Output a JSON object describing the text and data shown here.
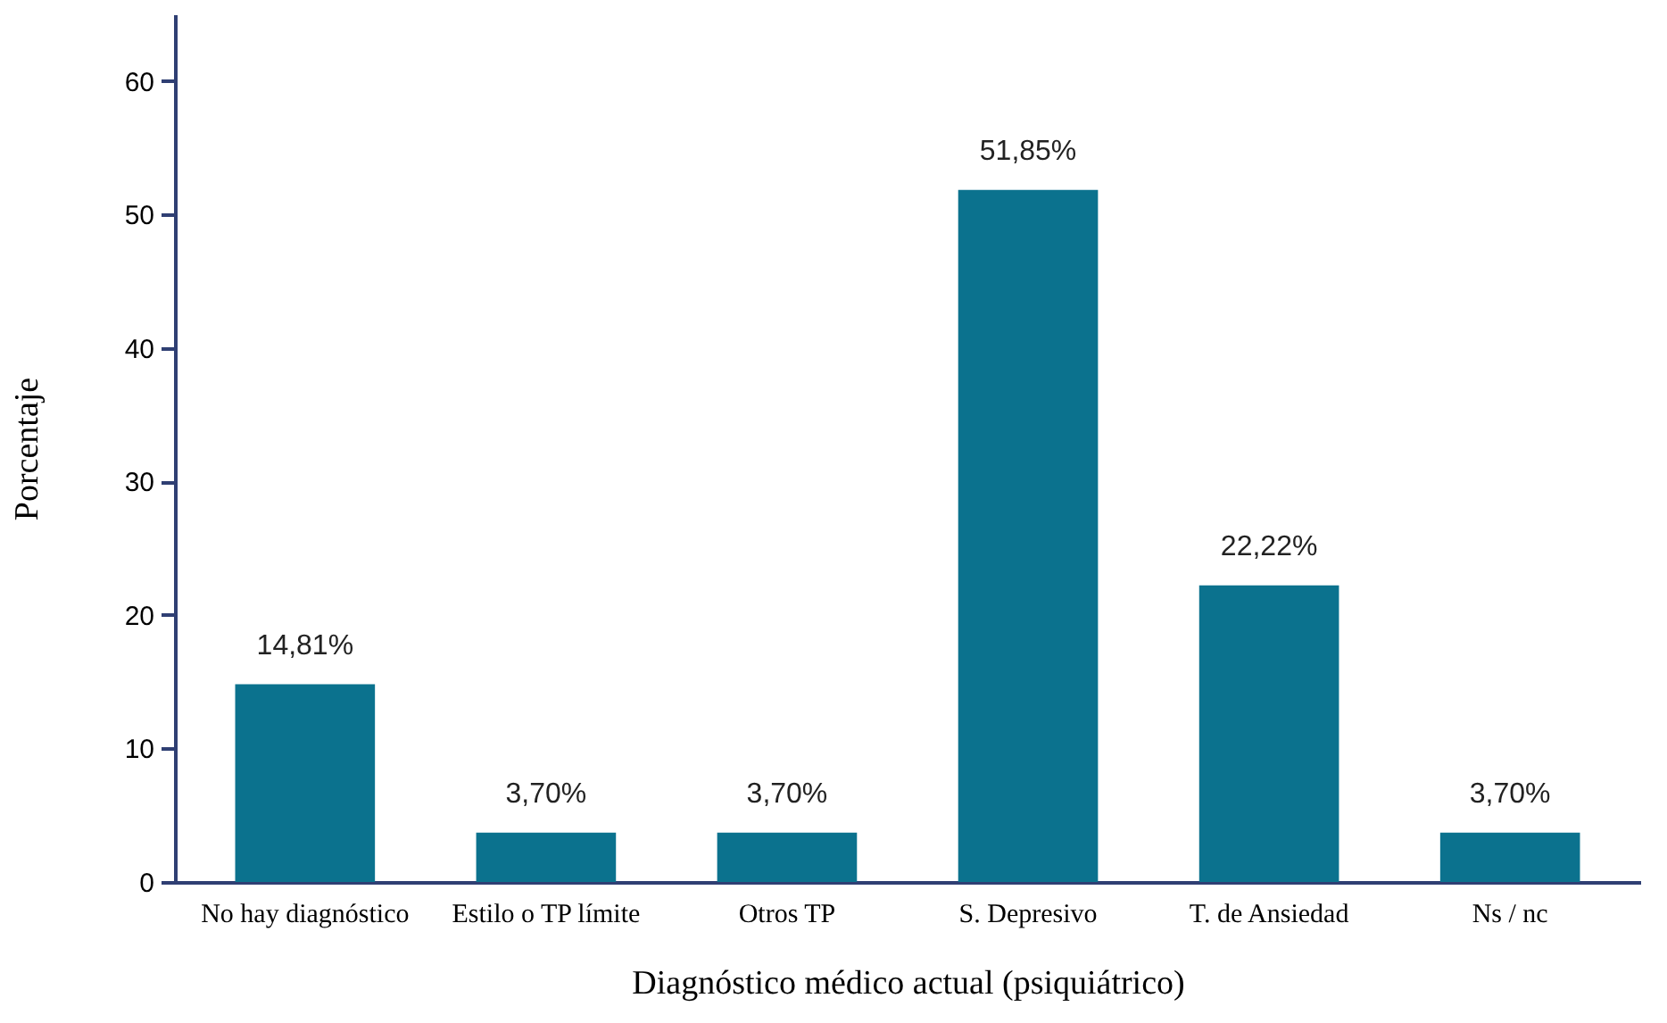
{
  "chart_data": {
    "type": "bar",
    "xlabel": "Diagnóstico médico actual (psiquiátrico)",
    "ylabel": "Porcentaje",
    "categories": [
      "No hay diagnóstico",
      "Estilo o TP límite",
      "Otros TP",
      "S. Depresivo",
      "T. de Ansiedad",
      "Ns / nc"
    ],
    "values": [
      14.81,
      3.7,
      3.7,
      51.85,
      22.22,
      3.7
    ],
    "value_labels": [
      "14,81%",
      "3,70%",
      "3,70%",
      "51,85%",
      "22,22%",
      "3,70%"
    ],
    "color": "#0b728e",
    "ylim": [
      0,
      65
    ],
    "yticks": [
      0,
      10,
      20,
      30,
      40,
      50,
      60
    ],
    "grid": false
  }
}
